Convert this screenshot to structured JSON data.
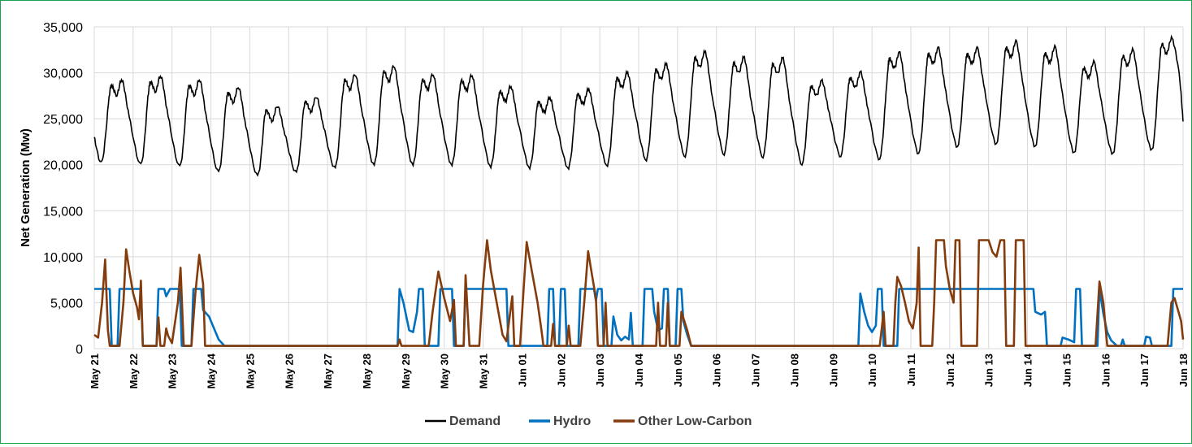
{
  "chart_data": {
    "type": "line",
    "title": "",
    "xlabel": "",
    "ylabel": "Net Generation (Mw)",
    "ylim": [
      0,
      35000
    ],
    "y_ticks": [
      0,
      5000,
      10000,
      15000,
      20000,
      25000,
      30000,
      35000
    ],
    "y_tick_labels": [
      "0",
      "5,000",
      "10,000",
      "15,000",
      "20,000",
      "25,000",
      "30,000",
      "35,000"
    ],
    "x_range_days": [
      0,
      28
    ],
    "x_tick_labels": [
      "May 21",
      "May 22",
      "May 23",
      "May 24",
      "May 25",
      "May 26",
      "May 27",
      "May 28",
      "May 29",
      "May 30",
      "May 31",
      "Jun 01",
      "Jun 02",
      "Jun 03",
      "Jun 04",
      "Jun 05",
      "Jun 06",
      "Jun 07",
      "Jun 08",
      "Jun 09",
      "Jun 10",
      "Jun 11",
      "Jun 12",
      "Jun 13",
      "Jun 14",
      "Jun 15",
      "Jun 16",
      "Jun 17",
      "Jun 18"
    ],
    "grid": true,
    "legend_position": "bottom",
    "series": [
      {
        "name": "Demand",
        "color": "#000000",
        "daily_min": [
          20300,
          20000,
          19800,
          19200,
          18800,
          19200,
          19700,
          20000,
          20000,
          20000,
          19800,
          19700,
          19700,
          20000,
          20600,
          21000,
          21200,
          20900,
          20100,
          21000,
          20700,
          21300,
          22000,
          22300,
          22000,
          21300,
          21200,
          21600
        ],
        "daily_max": [
          29200,
          29600,
          29200,
          28400,
          26400,
          27400,
          29800,
          30700,
          29800,
          29700,
          28500,
          27300,
          28200,
          30000,
          30900,
          32200,
          31600,
          31500,
          29100,
          30000,
          32100,
          32600,
          32600,
          33300,
          32700,
          31100,
          32400,
          33700
        ],
        "end_value": 24700
      },
      {
        "name": "Hydro",
        "color": "#0070c0",
        "points": [
          [
            0,
            6500
          ],
          [
            0.4,
            6500
          ],
          [
            0.45,
            300
          ],
          [
            0.6,
            300
          ],
          [
            0.65,
            6500
          ],
          [
            1.2,
            6500
          ],
          [
            1.25,
            300
          ],
          [
            1.6,
            300
          ],
          [
            1.65,
            6500
          ],
          [
            1.8,
            6500
          ],
          [
            1.85,
            5700
          ],
          [
            1.95,
            6500
          ],
          [
            2.2,
            6500
          ],
          [
            2.25,
            300
          ],
          [
            2.5,
            300
          ],
          [
            2.55,
            6500
          ],
          [
            2.75,
            6500
          ],
          [
            2.8,
            4200
          ],
          [
            2.95,
            3500
          ],
          [
            3.2,
            1000
          ],
          [
            3.35,
            300
          ],
          [
            7.8,
            300
          ],
          [
            7.85,
            6500
          ],
          [
            7.95,
            5000
          ],
          [
            8.1,
            2000
          ],
          [
            8.2,
            1800
          ],
          [
            8.3,
            4000
          ],
          [
            8.35,
            6500
          ],
          [
            8.45,
            6500
          ],
          [
            8.5,
            300
          ],
          [
            8.85,
            300
          ],
          [
            8.9,
            6500
          ],
          [
            9.2,
            6500
          ],
          [
            9.25,
            300
          ],
          [
            9.5,
            300
          ],
          [
            9.55,
            6500
          ],
          [
            10.6,
            6500
          ],
          [
            10.65,
            300
          ],
          [
            11.65,
            300
          ],
          [
            11.7,
            6500
          ],
          [
            11.8,
            6500
          ],
          [
            11.85,
            300
          ],
          [
            11.95,
            300
          ],
          [
            12,
            6500
          ],
          [
            12.1,
            6500
          ],
          [
            12.15,
            300
          ],
          [
            12.45,
            300
          ],
          [
            12.5,
            6500
          ],
          [
            12.85,
            6500
          ],
          [
            12.9,
            5200
          ],
          [
            12.95,
            6500
          ],
          [
            13.05,
            6500
          ],
          [
            13.1,
            300
          ],
          [
            13.3,
            300
          ],
          [
            13.35,
            3500
          ],
          [
            13.45,
            1500
          ],
          [
            13.55,
            900
          ],
          [
            13.65,
            1300
          ],
          [
            13.75,
            1000
          ],
          [
            13.8,
            3900
          ],
          [
            13.85,
            300
          ],
          [
            14.1,
            300
          ],
          [
            14.15,
            6500
          ],
          [
            14.35,
            6500
          ],
          [
            14.4,
            4000
          ],
          [
            14.5,
            2000
          ],
          [
            14.6,
            2200
          ],
          [
            14.65,
            6500
          ],
          [
            14.75,
            6500
          ],
          [
            14.8,
            300
          ],
          [
            14.95,
            300
          ],
          [
            15,
            6500
          ],
          [
            15.1,
            6500
          ],
          [
            15.15,
            3000
          ],
          [
            15.25,
            1500
          ],
          [
            15.35,
            300
          ],
          [
            19.65,
            300
          ],
          [
            19.7,
            6000
          ],
          [
            19.8,
            4000
          ],
          [
            19.9,
            2500
          ],
          [
            20,
            1800
          ],
          [
            20.1,
            2500
          ],
          [
            20.15,
            6500
          ],
          [
            20.25,
            6500
          ],
          [
            20.3,
            300
          ],
          [
            20.65,
            300
          ],
          [
            20.7,
            6500
          ],
          [
            24.15,
            6500
          ],
          [
            24.2,
            4000
          ],
          [
            24.35,
            3700
          ],
          [
            24.45,
            4000
          ],
          [
            24.5,
            300
          ],
          [
            24.85,
            300
          ],
          [
            24.9,
            1200
          ],
          [
            25.05,
            1000
          ],
          [
            25.2,
            700
          ],
          [
            25.25,
            6500
          ],
          [
            25.35,
            6500
          ],
          [
            25.4,
            300
          ],
          [
            25.8,
            300
          ],
          [
            25.85,
            6500
          ],
          [
            25.95,
            3800
          ],
          [
            26.05,
            1800
          ],
          [
            26.15,
            900
          ],
          [
            26.25,
            500
          ],
          [
            26.3,
            300
          ],
          [
            26.4,
            300
          ],
          [
            26.45,
            1000
          ],
          [
            26.5,
            300
          ],
          [
            27,
            300
          ],
          [
            27.05,
            1300
          ],
          [
            27.15,
            1200
          ],
          [
            27.2,
            300
          ],
          [
            27.7,
            300
          ],
          [
            27.75,
            6500
          ],
          [
            28,
            6500
          ]
        ]
      },
      {
        "name": "Other Low-Carbon",
        "color": "#843c0c",
        "points": [
          [
            0,
            1500
          ],
          [
            0.1,
            1200
          ],
          [
            0.2,
            5000
          ],
          [
            0.28,
            9700
          ],
          [
            0.35,
            2000
          ],
          [
            0.4,
            300
          ],
          [
            0.65,
            300
          ],
          [
            0.75,
            5000
          ],
          [
            0.82,
            10800
          ],
          [
            0.9,
            8500
          ],
          [
            1,
            6000
          ],
          [
            1.1,
            4500
          ],
          [
            1.15,
            3200
          ],
          [
            1.2,
            7400
          ],
          [
            1.25,
            300
          ],
          [
            1.6,
            300
          ],
          [
            1.65,
            3400
          ],
          [
            1.7,
            300
          ],
          [
            1.8,
            300
          ],
          [
            1.85,
            2200
          ],
          [
            1.9,
            1400
          ],
          [
            2,
            600
          ],
          [
            2.15,
            5000
          ],
          [
            2.22,
            8800
          ],
          [
            2.3,
            300
          ],
          [
            2.5,
            300
          ],
          [
            2.6,
            6000
          ],
          [
            2.7,
            10200
          ],
          [
            2.8,
            7000
          ],
          [
            2.85,
            300
          ],
          [
            7.8,
            300
          ],
          [
            7.85,
            1000
          ],
          [
            7.9,
            300
          ],
          [
            8.6,
            300
          ],
          [
            8.7,
            4000
          ],
          [
            8.85,
            8400
          ],
          [
            9,
            5500
          ],
          [
            9.15,
            3000
          ],
          [
            9.25,
            5300
          ],
          [
            9.3,
            300
          ],
          [
            9.5,
            300
          ],
          [
            9.55,
            8000
          ],
          [
            9.65,
            300
          ],
          [
            9.9,
            300
          ],
          [
            10,
            7000
          ],
          [
            10.1,
            11800
          ],
          [
            10.2,
            8500
          ],
          [
            10.35,
            5000
          ],
          [
            10.5,
            1500
          ],
          [
            10.6,
            800
          ],
          [
            10.75,
            5700
          ],
          [
            10.8,
            300
          ],
          [
            10.95,
            300
          ],
          [
            11.05,
            7000
          ],
          [
            11.12,
            11600
          ],
          [
            11.25,
            8500
          ],
          [
            11.4,
            5000
          ],
          [
            11.5,
            2000
          ],
          [
            11.55,
            300
          ],
          [
            11.75,
            300
          ],
          [
            11.8,
            2700
          ],
          [
            11.85,
            300
          ],
          [
            12.15,
            300
          ],
          [
            12.2,
            2500
          ],
          [
            12.25,
            300
          ],
          [
            12.5,
            300
          ],
          [
            12.6,
            5000
          ],
          [
            12.7,
            10600
          ],
          [
            12.8,
            8000
          ],
          [
            12.9,
            5500
          ],
          [
            12.95,
            300
          ],
          [
            13.1,
            300
          ],
          [
            13.15,
            5000
          ],
          [
            13.2,
            300
          ],
          [
            14.45,
            300
          ],
          [
            14.5,
            5000
          ],
          [
            14.55,
            300
          ],
          [
            14.7,
            300
          ],
          [
            14.75,
            5000
          ],
          [
            14.8,
            300
          ],
          [
            15.05,
            300
          ],
          [
            15.1,
            4000
          ],
          [
            15.25,
            2000
          ],
          [
            15.35,
            300
          ],
          [
            20.2,
            300
          ],
          [
            20.3,
            4000
          ],
          [
            20.35,
            300
          ],
          [
            20.55,
            300
          ],
          [
            20.6,
            5000
          ],
          [
            20.65,
            7800
          ],
          [
            20.75,
            6800
          ],
          [
            20.85,
            5000
          ],
          [
            20.95,
            3000
          ],
          [
            21.05,
            2200
          ],
          [
            21.15,
            5000
          ],
          [
            21.2,
            11000
          ],
          [
            21.25,
            300
          ],
          [
            21.55,
            300
          ],
          [
            21.6,
            5000
          ],
          [
            21.65,
            11800
          ],
          [
            21.85,
            11800
          ],
          [
            21.9,
            9000
          ],
          [
            22,
            6500
          ],
          [
            22.1,
            5000
          ],
          [
            22.15,
            11800
          ],
          [
            22.25,
            11800
          ],
          [
            22.3,
            300
          ],
          [
            22.7,
            300
          ],
          [
            22.75,
            11800
          ],
          [
            23,
            11800
          ],
          [
            23.1,
            10500
          ],
          [
            23.2,
            10000
          ],
          [
            23.3,
            11800
          ],
          [
            23.4,
            11800
          ],
          [
            23.45,
            300
          ],
          [
            23.65,
            300
          ],
          [
            23.7,
            11800
          ],
          [
            23.9,
            11800
          ],
          [
            23.95,
            300
          ],
          [
            25.75,
            300
          ],
          [
            25.85,
            7300
          ],
          [
            25.95,
            5000
          ],
          [
            26.05,
            300
          ],
          [
            27.6,
            300
          ],
          [
            27.7,
            5000
          ],
          [
            27.78,
            5500
          ],
          [
            27.85,
            4500
          ],
          [
            27.95,
            3000
          ],
          [
            28,
            1000
          ]
        ]
      }
    ]
  }
}
